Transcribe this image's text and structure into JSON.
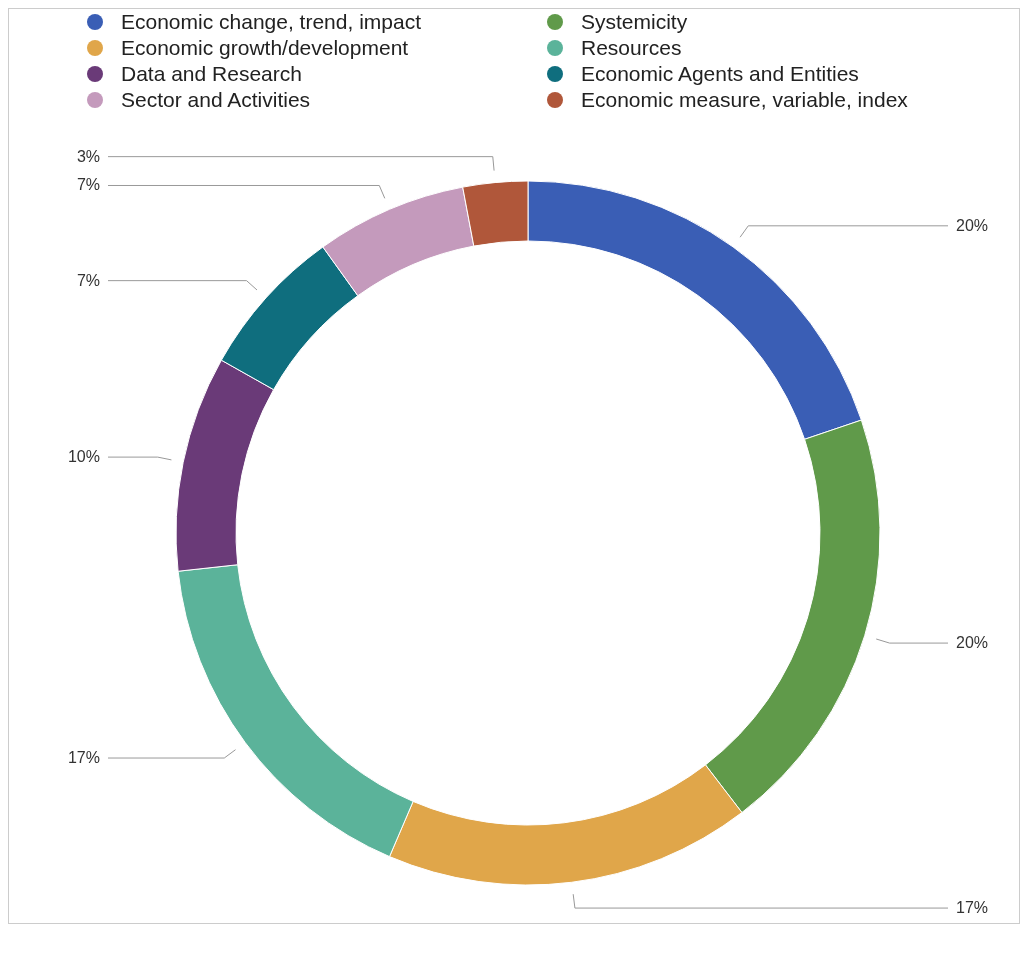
{
  "chart_data": {
    "type": "donut",
    "categories": [
      "Economic change, trend, impact",
      "Systemicity",
      "Economic growth/development",
      "Resources",
      "Data and Research",
      "Economic Agents and Entities",
      "Sector and Activities",
      "Economic measure, variable, index"
    ],
    "values": [
      20,
      20,
      17,
      17,
      10,
      7,
      7,
      3
    ],
    "value_labels": [
      "20%",
      "20%",
      "17%",
      "17%",
      "10%",
      "7%",
      "7%",
      "3%"
    ],
    "colors": [
      "#3a5eb5",
      "#609a4a",
      "#e0a64a",
      "#5bb39a",
      "#6a3a78",
      "#0f6e7e",
      "#c49abc",
      "#b0573a"
    ],
    "legend": "top"
  }
}
